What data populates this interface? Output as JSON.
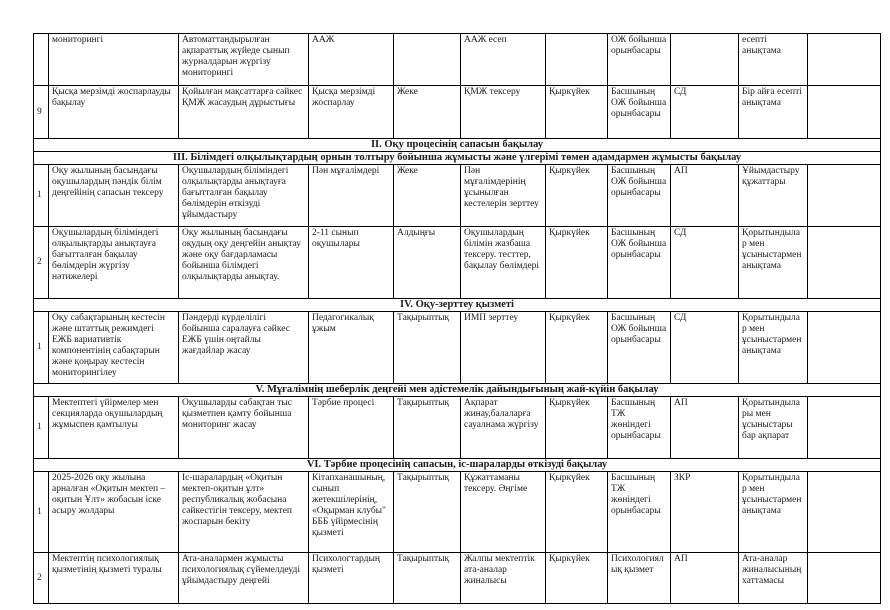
{
  "page": {
    "background_color": "#ffffff",
    "text_color": "#1c1c1c",
    "border_color": "#000000"
  },
  "table": {
    "rows": [
      {
        "type": "data",
        "num": "",
        "task": "мониторингі",
        "content": "Автоматтандырылған ақпараттық жүйеде сынып журналдарын жүргізу мониторингі",
        "object": "ААЖ",
        "form": "",
        "method": "ААЖ есеп",
        "date": "",
        "controller": "ОЖ бойынша орынбасары",
        "venue": "",
        "result": "есепті анықтама",
        "note": ""
      },
      {
        "type": "data",
        "num": "9",
        "task": "Қысқа мерзімді жоспарлауды бақылау",
        "content": "Қойылған мақсаттарға сәйкес ҚМЖ жасаудың дұрыстығы",
        "object": "Қысқа мерзімді жоспарлау",
        "form": "Жеке",
        "method": "ҚМЖ тексеру",
        "date": "Қыркүйек",
        "controller": "Басшының ОЖ бойынша орынбасары",
        "venue": "СД",
        "result": "Бір айға есепті анықтама",
        "note": ""
      },
      {
        "type": "section",
        "label": "II. Оқу процесінің сапасын бақылау"
      },
      {
        "type": "section",
        "label": "III. Білімдегі олқылықтардың орнын толтыру бойынша жұмысты және үлгерімі төмен адамдармен жұмысты бақылау"
      },
      {
        "type": "data",
        "num": "1",
        "task": "Оқу жылының басындағы оқушылардың пәндік білім деңгейінің сапасын тексеру",
        "content": "Оқушылардың біліміндегі олқылықтарды анықтауға бағытталған бақылау бөлімдерін өткізуді ұйымдастыру",
        "object": "Пән мұғалімдері",
        "form": "Жеке",
        "method": "Пән мұғалімдерінің ұсынылған кестелерін зерттеу",
        "date": "Қыркүйек",
        "controller": "Басшының ОЖ бойынша орынбасары",
        "venue": "АП",
        "result": "Ұйымдастыру құжаттары",
        "note": ""
      },
      {
        "type": "data",
        "num": "2",
        "task": "Оқушылардың біліміндегі олқылықтарды анықтауға бағытталған бақылау бөлімдерін жүргізу нәтижелері",
        "content": "Оқу жылының басындағы оқудың оқу деңгейін анықтау және оқу бағдарламасы бойынша білімдегі олқылықтарды анықтау.",
        "object": "2-11 сынып оқушылары",
        "form": "Алдыңғы",
        "method": "Оқушылардың білімін жазбаша тексеру. тесттер, бақылау бөлімдері",
        "date": "Қыркүйек",
        "controller": "Басшының ОЖ бойынша орынбасары",
        "venue": "СД",
        "result": "Қорытындылар мен ұсыныстармен анықтама",
        "note": ""
      },
      {
        "type": "section",
        "label": "IV. Оқу-зерттеу қызметі"
      },
      {
        "type": "data",
        "num": "1",
        "task": "Оқу сабақтарының кестесін және штаттық режимдегі ЕЖБ вариативтік компонентінің сабақтарын және қоңырау кестесін мониторингілеу",
        "content": "Пәндерді күрделілігі бойынша саралауға сәйкес ЕЖБ үшін оңтайлы жағдайлар жасау",
        "object": "Педагогикалық ұжым",
        "form": "Тақырыптық",
        "method": "ИМП зерттеу",
        "date": "Қыркүйек",
        "controller": "Басшының ОЖ бойынша орынбасары",
        "venue": "СД",
        "result": "Қорытындылар мен ұсыныстармен анықтама",
        "note": ""
      },
      {
        "type": "section",
        "label": "V. Мұғалімнің шеберлік деңгейі мен әдістемелік дайындығының жай-күйін бақылау"
      },
      {
        "type": "data",
        "num": "1",
        "task": "Мектептегі үйірмелер мен секцияларда оқушылардың жұмыспен қамтылуы",
        "content": "Оқушыларды сабақтан тыс қызметпен қамту бойынша мониторинг жасау",
        "object": "Тәрбие процесі",
        "form": "Тақырыптық",
        "method": "Ақпарат жинау,балаларға сауалнама жүргізу",
        "date": "Қыркүйек",
        "controller": "Басшының ТЖ жөніндегі орынбасары",
        "venue": "АП",
        "result": "Қорытындылары мен ұсыныстары бар ақпарат",
        "note": ""
      },
      {
        "type": "section",
        "label": "VI. Тәрбие процесінің сапасын, іс-шараларды өткізуді бақылау"
      },
      {
        "type": "data",
        "num": "1",
        "task": "2025-2026 оқу жылына арналған «Оқитын мектеп – оқитын Ұлт» жобасын іске асыру жолдары",
        "content": "Іс-шаралардың «Оқитын мектеп-оқитын ұлт» республикалық жобасына сәйкестігін тексеру, мектеп жоспарын бекіту",
        "object": "Кітапханашының, сынып жетекшілерінің, «Оқырман клубы\" БББ үйірмесінің қызметі",
        "form": "Тақырыптық",
        "method": "Құжаттаманы тексеру. Әңгіме",
        "date": "Қыркүйек",
        "controller": "Басшының ТЖ жөніндегі орынбасары",
        "venue": "ЗКР",
        "result": "Қорытындылар мен ұсыныстармен анықтама",
        "note": ""
      },
      {
        "type": "data",
        "num": "2",
        "task": "Мектептің психологиялық қызметінің қызметі туралы",
        "content": "Ата-аналармен жұмысты психологиялық сүйемелдеуді ұйымдастыру деңгейі",
        "object": "Психологтардың қызметі",
        "form": "Тақырыптық",
        "method": "Жалпы мектептік ата-аналар жиналысы",
        "date": "Қыркүйек",
        "controller": "Психологиялық қызмет",
        "venue": "АП",
        "result": "Ата-аналар жиналысының хаттамасы",
        "note": ""
      }
    ]
  }
}
